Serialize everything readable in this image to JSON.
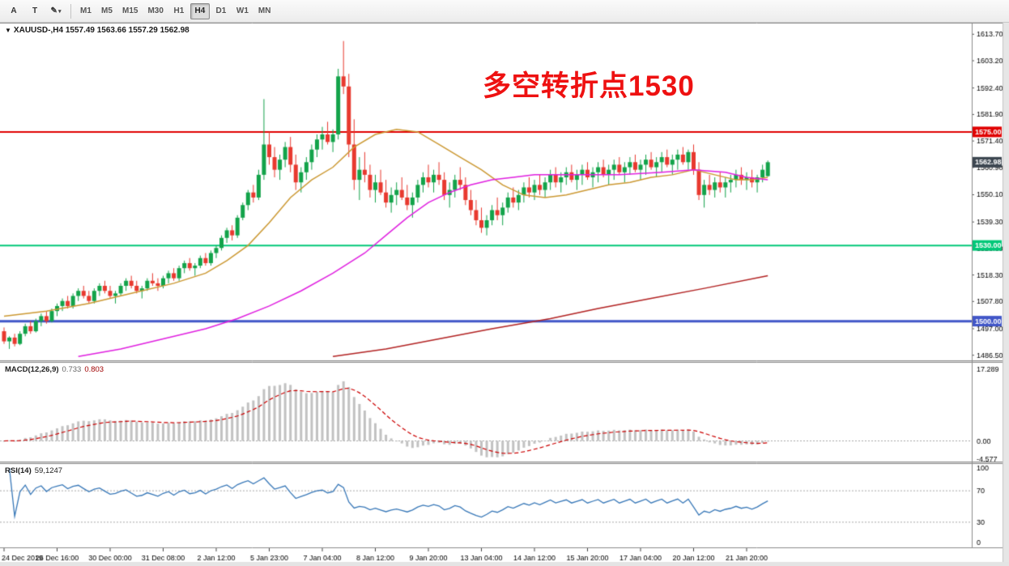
{
  "toolbar": {
    "tools": [
      {
        "label": "A"
      },
      {
        "label": "T"
      },
      {
        "label": "✎",
        "caret": "▾"
      }
    ],
    "timeframes": [
      {
        "label": "M1"
      },
      {
        "label": "M5"
      },
      {
        "label": "M15"
      },
      {
        "label": "M30"
      },
      {
        "label": "H1"
      },
      {
        "label": "H4",
        "active": true
      },
      {
        "label": "D1"
      },
      {
        "label": "W1"
      },
      {
        "label": "MN"
      }
    ]
  },
  "chart": {
    "title": {
      "collapse_icon": "▼",
      "text": "XAUUSD-,H4 1557.49 1563.66 1557.29 1562.98"
    },
    "annotation": {
      "text": "多空转折点1530",
      "color": "#ee1111"
    }
  },
  "indicators": {
    "macd": {
      "name": "MACD(12,26,9)",
      "value_main": "0.733",
      "value_signal": "0.803"
    },
    "rsi": {
      "name": "RSI(14)",
      "value": "59,1247"
    }
  },
  "chart_data": {
    "type": "candlestick",
    "symbol": "XAUUSD-",
    "timeframe": "H4",
    "up_color": "#13a34a",
    "down_color": "#e8392f",
    "price_axis": {
      "min": 1484.8,
      "max": 1617.0,
      "ticks": [
        "1613.70",
        "1603.20",
        "1592.40",
        "1581.90",
        "1571.40",
        "1560.90",
        "1550.10",
        "1539.30",
        "1528.60",
        "1518.30",
        "1507.80",
        "1497.00",
        "1486.50"
      ]
    },
    "hlines": [
      {
        "price": 1575.0,
        "label": "1575.00",
        "color": "#e00000",
        "width": 2
      },
      {
        "price": 1530.0,
        "label": "1530.00",
        "color": "#00c878",
        "width": 2
      },
      {
        "price": 1500.0,
        "label": "1500.00",
        "color": "#4156c8",
        "width": 3
      }
    ],
    "current_price": {
      "value": 1562.98,
      "label": "1562.98",
      "bg": "#3c4650"
    },
    "candles": [
      [
        1496,
        1497.5,
        1491,
        1492
      ],
      [
        1492,
        1494,
        1489,
        1493.5
      ],
      [
        1493.5,
        1495,
        1490,
        1491
      ],
      [
        1491,
        1496,
        1490.5,
        1495
      ],
      [
        1495,
        1499,
        1494,
        1498
      ],
      [
        1498,
        1500,
        1495,
        1496
      ],
      [
        1496,
        1501,
        1495.5,
        1500
      ],
      [
        1500,
        1503,
        1498,
        1502
      ],
      [
        1502,
        1504,
        1499,
        1500
      ],
      [
        1500,
        1505,
        1499.5,
        1504
      ],
      [
        1504,
        1507,
        1502,
        1506
      ],
      [
        1506,
        1509,
        1504,
        1508
      ],
      [
        1508,
        1510,
        1505,
        1506
      ],
      [
        1506,
        1511,
        1505,
        1510
      ],
      [
        1510,
        1513,
        1508,
        1512
      ],
      [
        1512,
        1514,
        1509,
        1510
      ],
      [
        1510,
        1512,
        1507,
        1508
      ],
      [
        1508,
        1513,
        1507,
        1512
      ],
      [
        1512,
        1515,
        1510,
        1514
      ],
      [
        1514,
        1516,
        1511,
        1512
      ],
      [
        1512,
        1514,
        1509,
        1510
      ],
      [
        1510,
        1512,
        1507,
        1511
      ],
      [
        1511,
        1515,
        1510,
        1514
      ],
      [
        1514,
        1517,
        1512,
        1516
      ],
      [
        1516,
        1518,
        1513,
        1514
      ],
      [
        1514,
        1516,
        1511,
        1512
      ],
      [
        1512,
        1514,
        1509,
        1513
      ],
      [
        1513,
        1517,
        1512,
        1516
      ],
      [
        1516,
        1519,
        1514,
        1515
      ],
      [
        1515,
        1517,
        1512,
        1514
      ],
      [
        1514,
        1518,
        1513,
        1517
      ],
      [
        1517,
        1520,
        1515,
        1519
      ],
      [
        1519,
        1521,
        1516,
        1517
      ],
      [
        1517,
        1522,
        1516,
        1521
      ],
      [
        1521,
        1524,
        1519,
        1523
      ],
      [
        1523,
        1525,
        1520,
        1521
      ],
      [
        1521,
        1523,
        1518,
        1522
      ],
      [
        1522,
        1526,
        1521,
        1525
      ],
      [
        1525,
        1527,
        1522,
        1523
      ],
      [
        1523,
        1528,
        1522,
        1527
      ],
      [
        1527,
        1530,
        1525,
        1529
      ],
      [
        1529,
        1534,
        1528,
        1533
      ],
      [
        1533,
        1537,
        1531,
        1536
      ],
      [
        1536,
        1538,
        1532,
        1534
      ],
      [
        1534,
        1542,
        1533,
        1541
      ],
      [
        1541,
        1547,
        1540,
        1546
      ],
      [
        1546,
        1552,
        1544,
        1551
      ],
      [
        1551,
        1554,
        1547,
        1549
      ],
      [
        1549,
        1560,
        1548,
        1558
      ],
      [
        1558,
        1588,
        1556,
        1570
      ],
      [
        1570,
        1575,
        1562,
        1565
      ],
      [
        1565,
        1569,
        1557,
        1560
      ],
      [
        1560,
        1566,
        1556,
        1564
      ],
      [
        1564,
        1571,
        1561,
        1569
      ],
      [
        1569,
        1573,
        1559,
        1562
      ],
      [
        1562,
        1566,
        1552,
        1555
      ],
      [
        1555,
        1561,
        1551,
        1559
      ],
      [
        1559,
        1565,
        1556,
        1563
      ],
      [
        1563,
        1570,
        1560,
        1568
      ],
      [
        1568,
        1574,
        1565,
        1572
      ],
      [
        1572,
        1577,
        1568,
        1574
      ],
      [
        1574,
        1579,
        1570,
        1571
      ],
      [
        1571,
        1576,
        1567,
        1574
      ],
      [
        1574,
        1600,
        1572,
        1597
      ],
      [
        1597,
        1611,
        1590,
        1593
      ],
      [
        1593,
        1598,
        1565,
        1570
      ],
      [
        1570,
        1580,
        1552,
        1556
      ],
      [
        1556,
        1565,
        1548,
        1560
      ],
      [
        1560,
        1567,
        1555,
        1558
      ],
      [
        1558,
        1562,
        1549,
        1552
      ],
      [
        1552,
        1558,
        1547,
        1555
      ],
      [
        1555,
        1560,
        1550,
        1551
      ],
      [
        1551,
        1556,
        1545,
        1547
      ],
      [
        1547,
        1553,
        1543,
        1550
      ],
      [
        1550,
        1555,
        1546,
        1552
      ],
      [
        1552,
        1557,
        1548,
        1549
      ],
      [
        1549,
        1554,
        1544,
        1546
      ],
      [
        1546,
        1551,
        1541,
        1549
      ],
      [
        1549,
        1556,
        1547,
        1554
      ],
      [
        1554,
        1559,
        1551,
        1557
      ],
      [
        1557,
        1562,
        1553,
        1555
      ],
      [
        1555,
        1560,
        1551,
        1558
      ],
      [
        1558,
        1563,
        1554,
        1556
      ],
      [
        1556,
        1559,
        1548,
        1550
      ],
      [
        1550,
        1555,
        1545,
        1552
      ],
      [
        1552,
        1558,
        1549,
        1556
      ],
      [
        1556,
        1561,
        1552,
        1554
      ],
      [
        1554,
        1557,
        1546,
        1548
      ],
      [
        1548,
        1552,
        1542,
        1544
      ],
      [
        1544,
        1548,
        1538,
        1540
      ],
      [
        1540,
        1545,
        1535,
        1537
      ],
      [
        1537,
        1542,
        1534,
        1540
      ],
      [
        1540,
        1546,
        1538,
        1544
      ],
      [
        1544,
        1549,
        1540,
        1542
      ],
      [
        1542,
        1547,
        1538,
        1545
      ],
      [
        1545,
        1551,
        1543,
        1549
      ],
      [
        1549,
        1553,
        1545,
        1547
      ],
      [
        1547,
        1552,
        1544,
        1550
      ],
      [
        1550,
        1555,
        1547,
        1553
      ],
      [
        1553,
        1557,
        1549,
        1551
      ],
      [
        1551,
        1556,
        1548,
        1554
      ],
      [
        1554,
        1558,
        1550,
        1552
      ],
      [
        1552,
        1557,
        1549,
        1555
      ],
      [
        1555,
        1560,
        1552,
        1558
      ],
      [
        1558,
        1561,
        1553,
        1555
      ],
      [
        1555,
        1559,
        1551,
        1557
      ],
      [
        1557,
        1561,
        1554,
        1559
      ],
      [
        1559,
        1562,
        1555,
        1556
      ],
      [
        1556,
        1560,
        1552,
        1558
      ],
      [
        1558,
        1562,
        1554,
        1560
      ],
      [
        1560,
        1563,
        1556,
        1557
      ],
      [
        1557,
        1561,
        1553,
        1559
      ],
      [
        1559,
        1563,
        1555,
        1561
      ],
      [
        1561,
        1564,
        1557,
        1558
      ],
      [
        1558,
        1562,
        1554,
        1560
      ],
      [
        1560,
        1564,
        1556,
        1562
      ],
      [
        1562,
        1565,
        1558,
        1559
      ],
      [
        1559,
        1563,
        1555,
        1561
      ],
      [
        1561,
        1565,
        1558,
        1563
      ],
      [
        1563,
        1566,
        1559,
        1560
      ],
      [
        1560,
        1564,
        1556,
        1562
      ],
      [
        1562,
        1566,
        1558,
        1564
      ],
      [
        1564,
        1567,
        1560,
        1561
      ],
      [
        1561,
        1565,
        1557,
        1563
      ],
      [
        1563,
        1567,
        1559,
        1565
      ],
      [
        1565,
        1568,
        1561,
        1562
      ],
      [
        1562,
        1566,
        1558,
        1564
      ],
      [
        1564,
        1568,
        1560,
        1566
      ],
      [
        1566,
        1569,
        1562,
        1563
      ],
      [
        1563,
        1568,
        1560,
        1567
      ],
      [
        1567,
        1570,
        1558,
        1560
      ],
      [
        1560,
        1563,
        1548,
        1550
      ],
      [
        1550,
        1556,
        1545,
        1554
      ],
      [
        1554,
        1558,
        1550,
        1552
      ],
      [
        1552,
        1557,
        1549,
        1555
      ],
      [
        1555,
        1559,
        1551,
        1553
      ],
      [
        1553,
        1557,
        1549,
        1555
      ],
      [
        1555,
        1558,
        1551,
        1556
      ],
      [
        1556,
        1560,
        1553,
        1558
      ],
      [
        1558,
        1561,
        1554,
        1556
      ],
      [
        1556,
        1559,
        1552,
        1557
      ],
      [
        1557,
        1560,
        1553,
        1555
      ],
      [
        1555,
        1558,
        1551,
        1557
      ],
      [
        1557,
        1562,
        1555,
        1560
      ],
      [
        1557.49,
        1563.66,
        1557.29,
        1562.98
      ]
    ],
    "moving_averages": [
      {
        "name": "ma-fast",
        "color": "#cc9933",
        "points": [
          [
            0,
            1502
          ],
          [
            8,
            1504
          ],
          [
            16,
            1507
          ],
          [
            24,
            1511
          ],
          [
            32,
            1515
          ],
          [
            38,
            1519
          ],
          [
            42,
            1524
          ],
          [
            46,
            1530
          ],
          [
            50,
            1539
          ],
          [
            54,
            1549
          ],
          [
            58,
            1556
          ],
          [
            62,
            1561
          ],
          [
            66,
            1569
          ],
          [
            70,
            1574
          ],
          [
            74,
            1576
          ],
          [
            78,
            1575
          ],
          [
            82,
            1570
          ],
          [
            86,
            1565
          ],
          [
            90,
            1560
          ],
          [
            94,
            1554
          ],
          [
            98,
            1550
          ],
          [
            102,
            1549
          ],
          [
            106,
            1550
          ],
          [
            110,
            1552
          ],
          [
            114,
            1554
          ],
          [
            118,
            1555
          ],
          [
            122,
            1557
          ],
          [
            126,
            1558
          ],
          [
            130,
            1560
          ],
          [
            134,
            1558
          ],
          [
            138,
            1556
          ],
          [
            141,
            1556
          ],
          [
            144,
            1557
          ]
        ]
      },
      {
        "name": "ma-medium",
        "color": "#e020e0",
        "points": [
          [
            14,
            1486
          ],
          [
            22,
            1489
          ],
          [
            30,
            1493
          ],
          [
            38,
            1497
          ],
          [
            44,
            1501
          ],
          [
            50,
            1506
          ],
          [
            56,
            1512
          ],
          [
            62,
            1519
          ],
          [
            68,
            1527
          ],
          [
            72,
            1534
          ],
          [
            76,
            1541
          ],
          [
            80,
            1547
          ],
          [
            84,
            1551
          ],
          [
            88,
            1554
          ],
          [
            92,
            1556
          ],
          [
            96,
            1557
          ],
          [
            100,
            1558
          ],
          [
            108,
            1558
          ],
          [
            116,
            1558
          ],
          [
            124,
            1559
          ],
          [
            130,
            1560
          ],
          [
            136,
            1559
          ],
          [
            140,
            1557
          ],
          [
            144,
            1556
          ]
        ]
      },
      {
        "name": "ma-slow",
        "color": "#b22222",
        "points": [
          [
            62,
            1486
          ],
          [
            72,
            1489
          ],
          [
            82,
            1493
          ],
          [
            92,
            1497
          ],
          [
            103,
            1501
          ],
          [
            112,
            1505
          ],
          [
            122,
            1509
          ],
          [
            132,
            1513
          ],
          [
            144,
            1518
          ]
        ]
      }
    ],
    "macd": {
      "params": [
        12,
        26,
        9
      ],
      "hist_color": "#c2c2c2",
      "signal_color": "#cc0000",
      "axis": {
        "max": 17.289,
        "min": -4.577,
        "labels": [
          "17.289",
          "0.00",
          "-4.577"
        ]
      }
    },
    "rsi": {
      "period": 14,
      "color": "#3878b8",
      "levels": [
        70,
        30
      ],
      "axis_labels": [
        "100",
        "70",
        "30",
        "0"
      ]
    },
    "time_labels": [
      "24 Dec 2019",
      "26 Dec 16:00",
      "30 Dec 00:00",
      "31 Dec 08:00",
      "2 Jan 12:00",
      "5 Jan 23:00",
      "7 Jan 04:00",
      "8 Jan 12:00",
      "9 Jan 20:00",
      "13 Jan 04:00",
      "14 Jan 12:00",
      "15 Jan 20:00",
      "17 Jan 04:00",
      "20 Jan 12:00",
      "21 Jan 20:00"
    ]
  }
}
